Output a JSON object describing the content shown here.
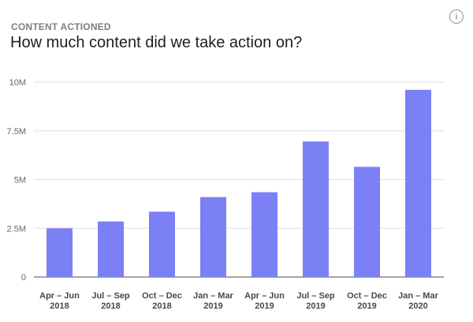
{
  "header": {
    "eyebrow": "CONTENT ACTIONED",
    "title": "How much content did we take action on?",
    "info_icon": "info-icon"
  },
  "colors": {
    "bar": "#7b80f5",
    "grid": "#dddfe2",
    "axis": "#444950"
  },
  "chart_data": {
    "type": "bar",
    "title": "How much content did we take action on?",
    "categories": [
      [
        "Apr – Jun",
        "2018"
      ],
      [
        "Jul – Sep",
        "2018"
      ],
      [
        "Oct – Dec",
        "2018"
      ],
      [
        "Jan – Mar",
        "2019"
      ],
      [
        "Apr – Jun",
        "2019"
      ],
      [
        "Jul – Sep",
        "2019"
      ],
      [
        "Oct – Dec",
        "2019"
      ],
      [
        "Jan – Mar",
        "2020"
      ]
    ],
    "values": [
      2500000,
      2850000,
      3350000,
      4100000,
      4350000,
      6950000,
      5650000,
      9600000
    ],
    "yticks": [
      0,
      2500000,
      5000000,
      7500000,
      10000000
    ],
    "ytick_labels": [
      "0",
      "2.5M",
      "5M",
      "7.5M",
      "10M"
    ],
    "ylim": [
      0,
      10000000
    ],
    "xlabel": "",
    "ylabel": "",
    "grid": true,
    "legend": "none"
  }
}
